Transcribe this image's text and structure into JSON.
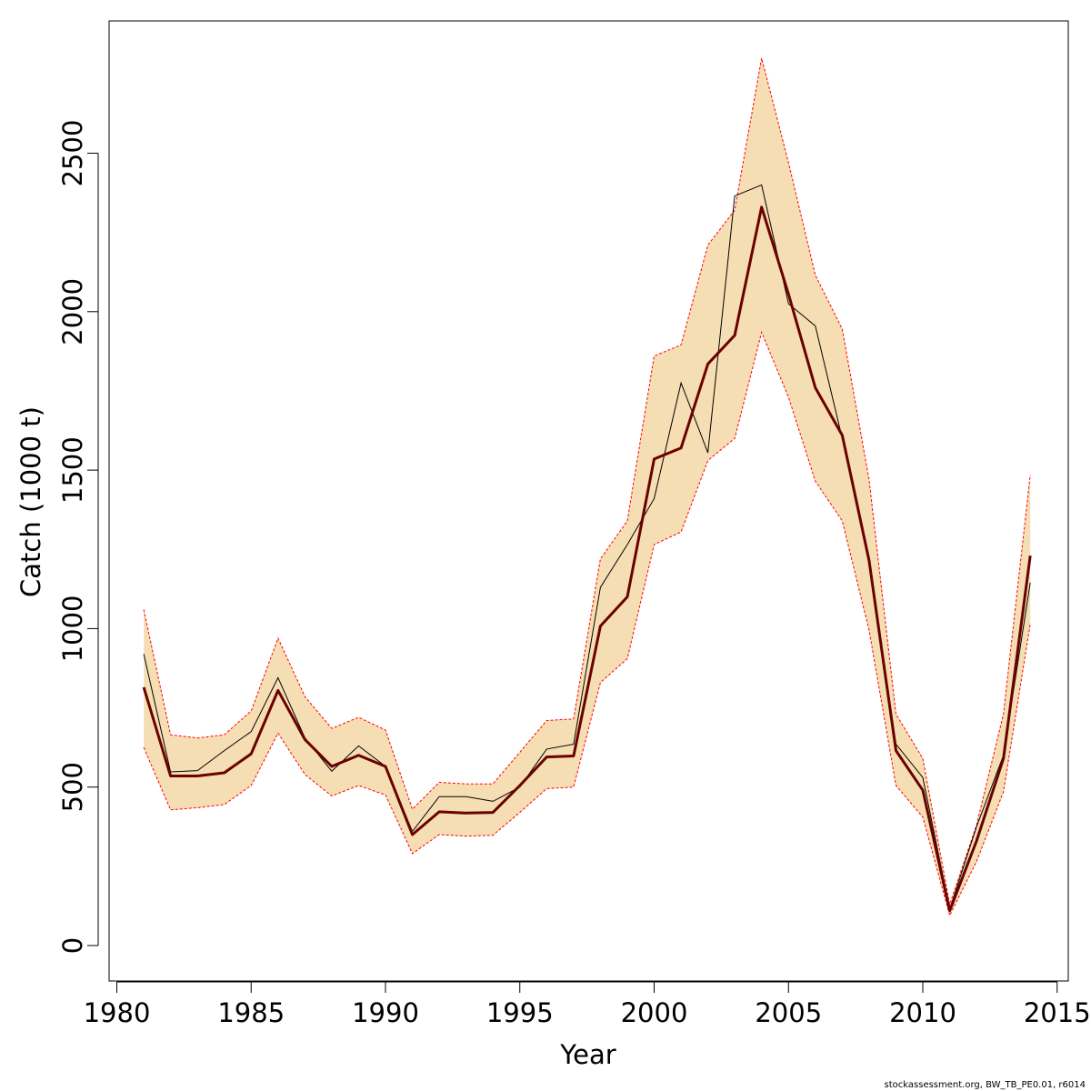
{
  "chart_data": {
    "type": "line",
    "title": "",
    "xlabel": "Year",
    "ylabel": "Catch (1000 t)",
    "xlim": [
      1980,
      2015
    ],
    "ylim": [
      0,
      2800
    ],
    "x_ticks": [
      1980,
      1985,
      1990,
      1995,
      2000,
      2005,
      2010,
      2015
    ],
    "y_ticks": [
      0,
      500,
      1000,
      1500,
      2000,
      2500
    ],
    "grid": false,
    "legend": "none",
    "colors": {
      "band_fill": "#F5DEB3",
      "band_border": "#FF0000",
      "fit_line": "#6B0000",
      "observed_line": "#000000"
    },
    "x": [
      1981,
      1982,
      1983,
      1984,
      1985,
      1986,
      1987,
      1988,
      1989,
      1990,
      1991,
      1992,
      1993,
      1994,
      1995,
      1996,
      1997,
      1998,
      1999,
      2000,
      2001,
      2002,
      2003,
      2004,
      2005,
      2006,
      2007,
      2008,
      2009,
      2010,
      2011,
      2012,
      2013,
      2014
    ],
    "series": [
      {
        "values": [
          1060,
          665,
          655,
          665,
          740,
          970,
          785,
          685,
          720,
          680,
          430,
          515,
          510,
          510,
          610,
          710,
          715,
          1220,
          1340,
          1860,
          1895,
          2210,
          2320,
          2800,
          2470,
          2115,
          1945,
          1470,
          730,
          590,
          130,
          380,
          730,
          1485
        ]
      },
      {
        "values": [
          625,
          428,
          435,
          445,
          505,
          670,
          540,
          472,
          505,
          475,
          290,
          350,
          345,
          348,
          420,
          495,
          500,
          830,
          905,
          1265,
          1305,
          1530,
          1600,
          1935,
          1730,
          1465,
          1340,
          995,
          505,
          405,
          95,
          265,
          485,
          1015
        ]
      },
      {
        "values": [
          815,
          535,
          535,
          545,
          605,
          805,
          650,
          565,
          600,
          565,
          350,
          422,
          418,
          420,
          505,
          595,
          598,
          1008,
          1100,
          1535,
          1570,
          1835,
          1925,
          2330,
          2055,
          1760,
          1610,
          1215,
          615,
          490,
          110,
          330,
          590,
          1230
        ]
      },
      {
        "values": [
          920,
          548,
          552,
          615,
          675,
          845,
          655,
          550,
          630,
          565,
          360,
          470,
          470,
          455,
          500,
          620,
          635,
          1130,
          1265,
          1410,
          1775,
          1555,
          2365,
          2400,
          2025,
          1955,
          1600,
          1220,
          635,
          530,
          115,
          375,
          600,
          1145
        ]
      }
    ]
  },
  "footer": {
    "credit": "stockassessment.org, BW_TB_PE0.01, r6014"
  }
}
